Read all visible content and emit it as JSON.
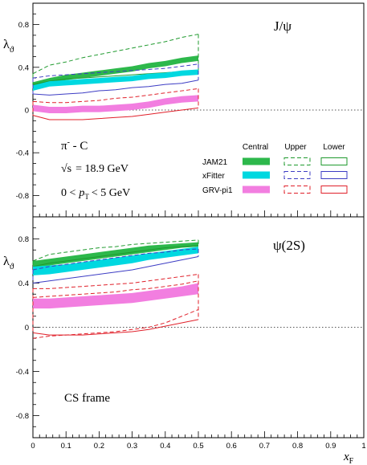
{
  "chart_data": {
    "type": "line",
    "x_axis": {
      "label_main": "x",
      "label_sub": "F",
      "range": [
        0,
        1
      ],
      "tick_labels": [
        "0",
        "0.1",
        "0.2",
        "0.3",
        "0.4",
        "0.5",
        "0.6",
        "0.7",
        "0.8",
        "0.9",
        "1"
      ]
    },
    "y_tick_labels": [
      "0.8",
      "0.4",
      "0",
      "-0.4",
      "-0.8"
    ],
    "y_label_main": "λ",
    "y_label_sub": "ϑ",
    "legend": {
      "headers": [
        "Central",
        "Upper",
        "Lower"
      ],
      "rows": [
        "JAM21",
        "xFitter",
        "GRV-pi1"
      ]
    },
    "annotations": {
      "beam": "π",
      "beam_sup": "-",
      "target": " - C",
      "sqrt_s_sym": "√s",
      "energy": "= 18.9 GeV",
      "pt_lo": "0 <",
      "pt_p": "p",
      "pt_sub": "T",
      "pt_hi": "< 5 GeV",
      "frame": "CS frame"
    },
    "colors": {
      "JAM21": "#2db84b",
      "xFitter": "#00d8e0",
      "GRV-pi1": "#f27ee0"
    },
    "panels": [
      {
        "title": "J/ψ",
        "ylim": [
          -1.0,
          1.0
        ],
        "x": [
          0.0,
          0.05,
          0.1,
          0.15,
          0.2,
          0.25,
          0.3,
          0.35,
          0.4,
          0.45,
          0.5
        ],
        "series": [
          {
            "name": "JAM21",
            "central_lo": [
              0.21,
              0.25,
              0.28,
              0.3,
              0.32,
              0.34,
              0.36,
              0.39,
              0.41,
              0.44,
              0.46
            ],
            "central_hi": [
              0.26,
              0.3,
              0.33,
              0.35,
              0.37,
              0.39,
              0.41,
              0.44,
              0.46,
              0.49,
              0.51
            ],
            "upper": [
              0.34,
              0.42,
              0.45,
              0.49,
              0.52,
              0.55,
              0.58,
              0.61,
              0.64,
              0.68,
              0.71
            ],
            "lower": [
              0.24,
              0.27,
              0.29,
              0.3,
              0.31,
              0.32,
              0.33,
              0.34,
              0.35,
              0.36,
              0.37
            ]
          },
          {
            "name": "xFitter",
            "central_lo": [
              0.18,
              0.22,
              0.23,
              0.24,
              0.25,
              0.26,
              0.27,
              0.29,
              0.3,
              0.32,
              0.33
            ],
            "central_hi": [
              0.23,
              0.27,
              0.28,
              0.29,
              0.3,
              0.31,
              0.32,
              0.34,
              0.35,
              0.37,
              0.38
            ],
            "upper": [
              0.3,
              0.32,
              0.33,
              0.34,
              0.35,
              0.36,
              0.37,
              0.38,
              0.39,
              0.41,
              0.43
            ],
            "lower": [
              0.15,
              0.14,
              0.15,
              0.16,
              0.18,
              0.19,
              0.21,
              0.22,
              0.24,
              0.25,
              0.28
            ]
          },
          {
            "name": "GRV-pi1",
            "central_lo": [
              -0.01,
              -0.03,
              -0.03,
              -0.02,
              -0.02,
              -0.01,
              0.0,
              0.02,
              0.05,
              0.07,
              0.08
            ],
            "central_hi": [
              0.05,
              0.03,
              0.03,
              0.04,
              0.04,
              0.05,
              0.06,
              0.08,
              0.11,
              0.13,
              0.14
            ],
            "upper": [
              0.08,
              0.07,
              0.07,
              0.08,
              0.09,
              0.11,
              0.12,
              0.14,
              0.16,
              0.18,
              0.2
            ],
            "lower": [
              -0.05,
              -0.09,
              -0.09,
              -0.09,
              -0.08,
              -0.07,
              -0.06,
              -0.04,
              -0.02,
              0.0,
              0.02
            ]
          }
        ]
      },
      {
        "title": "ψ(2S)",
        "ylim": [
          -1.0,
          1.0
        ],
        "x": [
          0.0,
          0.05,
          0.1,
          0.15,
          0.2,
          0.25,
          0.3,
          0.35,
          0.4,
          0.45,
          0.5
        ],
        "series": [
          {
            "name": "JAM21",
            "central_lo": [
              0.53,
              0.56,
              0.58,
              0.6,
              0.62,
              0.64,
              0.66,
              0.68,
              0.7,
              0.72,
              0.73
            ],
            "central_hi": [
              0.6,
              0.62,
              0.64,
              0.66,
              0.68,
              0.7,
              0.72,
              0.74,
              0.75,
              0.76,
              0.77
            ],
            "upper": [
              0.6,
              0.66,
              0.68,
              0.7,
              0.72,
              0.73,
              0.75,
              0.76,
              0.77,
              0.78,
              0.79
            ],
            "lower": [
              0.55,
              0.58,
              0.6,
              0.62,
              0.64,
              0.66,
              0.68,
              0.7,
              0.72,
              0.73,
              0.74
            ]
          },
          {
            "name": "xFitter",
            "central_lo": [
              0.47,
              0.48,
              0.5,
              0.52,
              0.54,
              0.56,
              0.58,
              0.61,
              0.63,
              0.65,
              0.67
            ],
            "central_hi": [
              0.55,
              0.56,
              0.57,
              0.59,
              0.61,
              0.63,
              0.65,
              0.67,
              0.69,
              0.71,
              0.73
            ],
            "upper": [
              0.52,
              0.55,
              0.57,
              0.59,
              0.61,
              0.63,
              0.65,
              0.67,
              0.68,
              0.7,
              0.71
            ],
            "lower": [
              0.4,
              0.42,
              0.44,
              0.46,
              0.48,
              0.5,
              0.52,
              0.55,
              0.58,
              0.61,
              0.64
            ]
          },
          {
            "name": "GRV-pi1",
            "central_lo": [
              0.17,
              0.17,
              0.18,
              0.19,
              0.2,
              0.21,
              0.22,
              0.24,
              0.26,
              0.28,
              0.3
            ],
            "central_hi": [
              0.26,
              0.26,
              0.27,
              0.28,
              0.29,
              0.3,
              0.31,
              0.33,
              0.35,
              0.37,
              0.4
            ],
            "upper": [
              0.35,
              0.35,
              0.36,
              0.37,
              0.38,
              0.39,
              0.4,
              0.42,
              0.44,
              0.46,
              0.48
            ],
            "lower": [
              -0.05,
              -0.07,
              -0.07,
              -0.07,
              -0.06,
              -0.05,
              -0.04,
              -0.02,
              0.01,
              0.04,
              0.07
            ]
          },
          {
            "name": "GRV-pi1 upper (outer)",
            "legend": false,
            "style": "dashed",
            "color_key": "GRV-pi1-upper2",
            "values": [
              0.27,
              0.28,
              0.29,
              0.3,
              0.31,
              0.32,
              0.34,
              0.35,
              0.37,
              0.39,
              0.42
            ]
          },
          {
            "name": "GRV-pi1 lower (outer)",
            "legend": false,
            "style": "dashed",
            "color_key": "GRV-pi1-lower2",
            "values": [
              -0.1,
              -0.08,
              -0.07,
              -0.06,
              -0.05,
              -0.04,
              -0.02,
              0.0,
              0.04,
              0.1,
              0.16
            ]
          }
        ]
      }
    ]
  }
}
